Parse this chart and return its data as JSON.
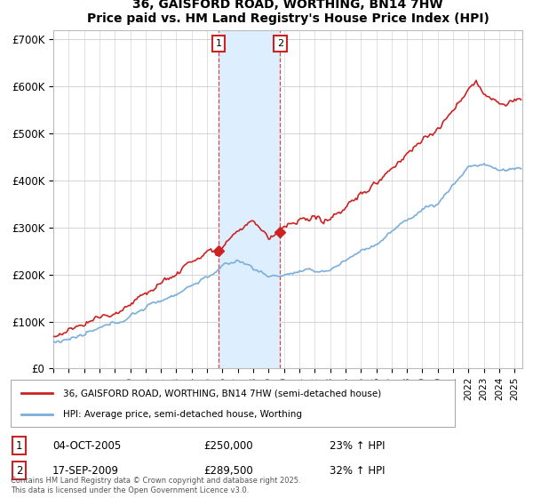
{
  "title": "36, GAISFORD ROAD, WORTHING, BN14 7HW",
  "subtitle": "Price paid vs. HM Land Registry's House Price Index (HPI)",
  "ylim": [
    0,
    720000
  ],
  "yticks": [
    0,
    100000,
    200000,
    300000,
    400000,
    500000,
    600000,
    700000
  ],
  "ytick_labels": [
    "£0",
    "£100K",
    "£200K",
    "£300K",
    "£400K",
    "£500K",
    "£600K",
    "£700K"
  ],
  "hpi_color": "#7aaedb",
  "price_color": "#cc2222",
  "shading_color": "#ddeeff",
  "sale1_year": 2005.79,
  "sale1_price": 250000,
  "sale1_hpi_pct": "23%",
  "sale1_date": "04-OCT-2005",
  "sale2_year": 2009.71,
  "sale2_price": 289500,
  "sale2_hpi_pct": "32%",
  "sale2_date": "17-SEP-2009",
  "legend_line1": "36, GAISFORD ROAD, WORTHING, BN14 7HW (semi-detached house)",
  "legend_line2": "HPI: Average price, semi-detached house, Worthing",
  "footer": "Contains HM Land Registry data © Crown copyright and database right 2025.\nThis data is licensed under the Open Government Licence v3.0.",
  "x_start_year": 1995,
  "x_end_year": 2025
}
